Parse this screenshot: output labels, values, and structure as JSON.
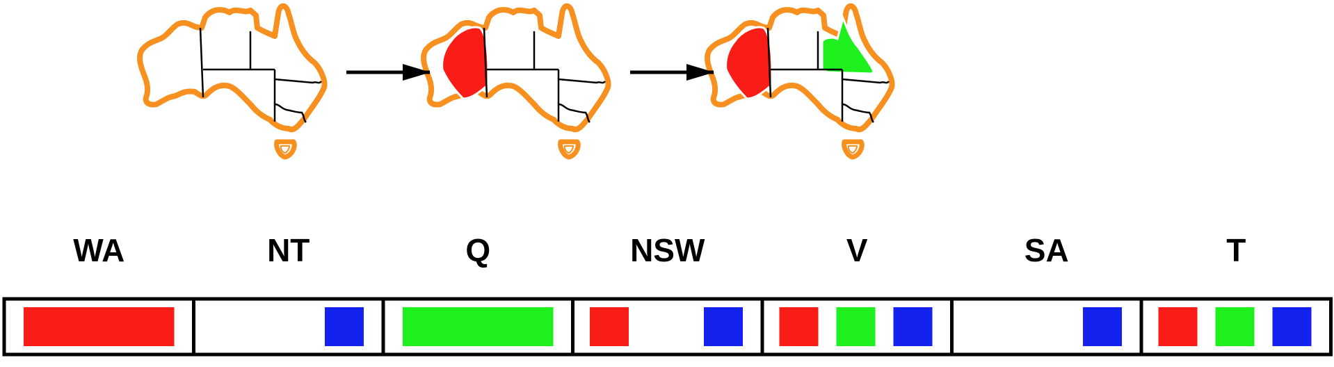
{
  "colors": {
    "outline": "#f7901e",
    "border": "#000000",
    "red": "#fa1c16",
    "green": "#1ef01e",
    "blue": "#1422f0",
    "arrow": "#000000"
  },
  "maps": [
    {
      "name": "initial",
      "filled": []
    },
    {
      "name": "after-wa",
      "filled": [
        {
          "region": "WA",
          "color": "red"
        }
      ]
    },
    {
      "name": "after-q",
      "filled": [
        {
          "region": "WA",
          "color": "red"
        },
        {
          "region": "Q",
          "color": "green"
        }
      ]
    }
  ],
  "domains": [
    {
      "label": "WA",
      "values": [
        "red"
      ],
      "layout": "assigned"
    },
    {
      "label": "NT",
      "values": [
        "blue"
      ],
      "layout": "remaining"
    },
    {
      "label": "Q",
      "values": [
        "green"
      ],
      "layout": "assigned"
    },
    {
      "label": "NSW",
      "values": [
        "red",
        "blue"
      ],
      "layout": "remaining"
    },
    {
      "label": "V",
      "values": [
        "red",
        "green",
        "blue"
      ],
      "layout": "remaining"
    },
    {
      "label": "SA",
      "values": [
        "blue"
      ],
      "layout": "remaining"
    },
    {
      "label": "T",
      "values": [
        "red",
        "green",
        "blue"
      ],
      "layout": "remaining"
    }
  ]
}
